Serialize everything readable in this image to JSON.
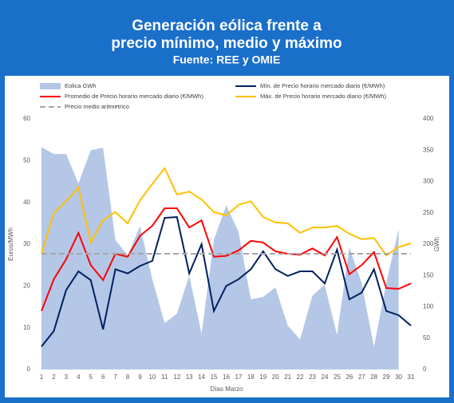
{
  "chart_data": {
    "type": "combo",
    "title": "Generación eólica frente a",
    "subtitle": "precio mínimo, medio y máximo",
    "source": "Fuente: REE y OMIE",
    "x_label": "Días Marzo",
    "y_label": "Euros/MWh",
    "y2_label": "GWh",
    "x": [
      1,
      2,
      3,
      4,
      5,
      6,
      7,
      8,
      9,
      10,
      11,
      12,
      13,
      14,
      15,
      16,
      17,
      18,
      19,
      20,
      21,
      22,
      23,
      24,
      25,
      26,
      27,
      28,
      29,
      30,
      31
    ],
    "xlim": [
      1,
      31
    ],
    "ylim": [
      0,
      60
    ],
    "yticks": [
      0,
      10,
      20,
      30,
      40,
      50,
      60
    ],
    "y2lim": [
      0,
      400
    ],
    "y2ticks": [
      0,
      50,
      100,
      150,
      200,
      250,
      300,
      350,
      400
    ],
    "series": [
      {
        "name": "Eolica GWh",
        "type": "area",
        "axis": "y2",
        "color": "#b4c7e7",
        "values": [
          355,
          344,
          344,
          297,
          350,
          354,
          207,
          182,
          229,
          144,
          74,
          89,
          150,
          57,
          207,
          262,
          220,
          112,
          116,
          131,
          70,
          48,
          118,
          135,
          55,
          195,
          138,
          36,
          138,
          224,
          null
        ]
      },
      {
        "name": "Mín. de Precio horario mercado diario (€/MWh)",
        "type": "line",
        "color": "#002060",
        "values": [
          5.5,
          9.2,
          19,
          23.5,
          21.4,
          9.6,
          24,
          23,
          24.8,
          26,
          36.3,
          36.5,
          23,
          30,
          14,
          20,
          21.6,
          24,
          28.3,
          24,
          22.4,
          23.5,
          23.5,
          20.6,
          28.7,
          16.8,
          18.4,
          24,
          14,
          13,
          10.5
        ]
      },
      {
        "name": "Promedio de Precio horario mercado diario (€/MWh)",
        "type": "line",
        "color": "#ff0000",
        "values": [
          14,
          21.6,
          26.4,
          32.7,
          25,
          21.4,
          27.7,
          27,
          32,
          34.4,
          38.6,
          38.6,
          34,
          35.7,
          27,
          27.2,
          28.5,
          30.8,
          30.4,
          28.3,
          27.7,
          27.5,
          29,
          27.3,
          31.7,
          22.8,
          25,
          28.1,
          19.5,
          19.3,
          20.6
        ]
      },
      {
        "name": "Máx. de Precio horario mercado diario (€/MWh)",
        "type": "line",
        "color": "#ffc000",
        "values": [
          27.7,
          37.5,
          40.3,
          43.6,
          30.4,
          35.7,
          37.7,
          35,
          40.5,
          44.4,
          48.2,
          41.9,
          42.6,
          40.7,
          37.7,
          36.9,
          39.4,
          40.3,
          36.5,
          35.2,
          35,
          32.7,
          34,
          34,
          34.4,
          32.5,
          31.2,
          31.5,
          27.3,
          29.3,
          30.2
        ]
      },
      {
        "name": "Precio medio aritmetrico",
        "type": "hline",
        "color": "#a6a6a6",
        "value": 27.7
      }
    ]
  }
}
